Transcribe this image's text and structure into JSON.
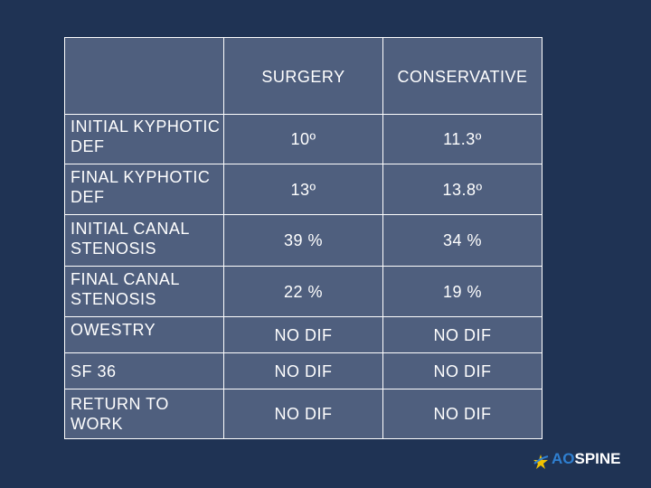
{
  "table": {
    "headers": [
      "",
      "SURGERY",
      "CONSERVATIVE"
    ],
    "rows": [
      {
        "label": "INITIAL KYPHOTIC DEF",
        "surgery": "10º",
        "conservative": "11.3º"
      },
      {
        "label": "FINAL KYPHOTIC DEF",
        "surgery": "13º",
        "conservative": "13.8º"
      },
      {
        "label": "INITIAL CANAL STENOSIS",
        "surgery": "39 %",
        "conservative": "34 %"
      },
      {
        "label": "FINAL CANAL STENOSIS",
        "surgery": "22 %",
        "conservative": "19 %"
      },
      {
        "label": "OWESTRY",
        "surgery": "NO DIF",
        "conservative": "NO DIF"
      },
      {
        "label": "SF 36",
        "surgery": "NO DIF",
        "conservative": "NO DIF"
      },
      {
        "label": "RETURN TO WORK",
        "surgery": "NO DIF",
        "conservative": "NO DIF"
      }
    ]
  },
  "logo": {
    "text_ao": "AO",
    "text_spine": "SPINE",
    "colors": {
      "ao": "#2f7fd0",
      "spine": "#ffffff",
      "mark": "#f2c200"
    }
  },
  "colors": {
    "background": "#1f3354",
    "table_fill": "#4f5f7e",
    "border": "#ffffff"
  }
}
